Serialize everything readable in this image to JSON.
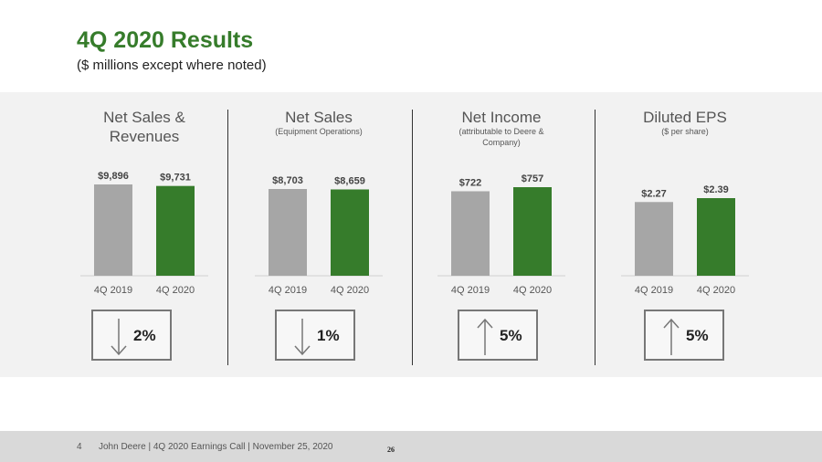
{
  "title": "4Q 2020 Results",
  "subtitle": "($ millions except where noted)",
  "colors": {
    "accent": "#367C2B",
    "prior": "#A6A6A6"
  },
  "chart_data": [
    {
      "type": "bar",
      "title": "Net Sales & Revenues",
      "subtitle": "",
      "categories": [
        "4Q 2019",
        "4Q 2020"
      ],
      "values": [
        9896,
        9731
      ],
      "value_labels": [
        "$9,896",
        "$9,731"
      ],
      "change": {
        "direction": "down",
        "label": "2%"
      }
    },
    {
      "type": "bar",
      "title": "Net Sales",
      "subtitle": "(Equipment Operations)",
      "categories": [
        "4Q 2019",
        "4Q 2020"
      ],
      "values": [
        8703,
        8659
      ],
      "value_labels": [
        "$8,703",
        "$8,659"
      ],
      "change": {
        "direction": "down",
        "label": "1%"
      }
    },
    {
      "type": "bar",
      "title": "Net Income",
      "subtitle": "(attributable to Deere & Company)",
      "categories": [
        "4Q 2019",
        "4Q 2020"
      ],
      "values": [
        722,
        757
      ],
      "value_labels": [
        "$722",
        "$757"
      ],
      "change": {
        "direction": "up",
        "label": "5%"
      }
    },
    {
      "type": "bar",
      "title": "Diluted EPS",
      "subtitle": "($ per share)",
      "categories": [
        "4Q 2019",
        "4Q 2020"
      ],
      "values": [
        2.27,
        2.39
      ],
      "value_labels": [
        "$2.27",
        "$2.39"
      ],
      "change": {
        "direction": "up",
        "label": "5%"
      }
    }
  ],
  "footer": {
    "page": "4",
    "text": "John Deere | 4Q 2020 Earnings Call | November 25, 2020",
    "number": "26"
  }
}
